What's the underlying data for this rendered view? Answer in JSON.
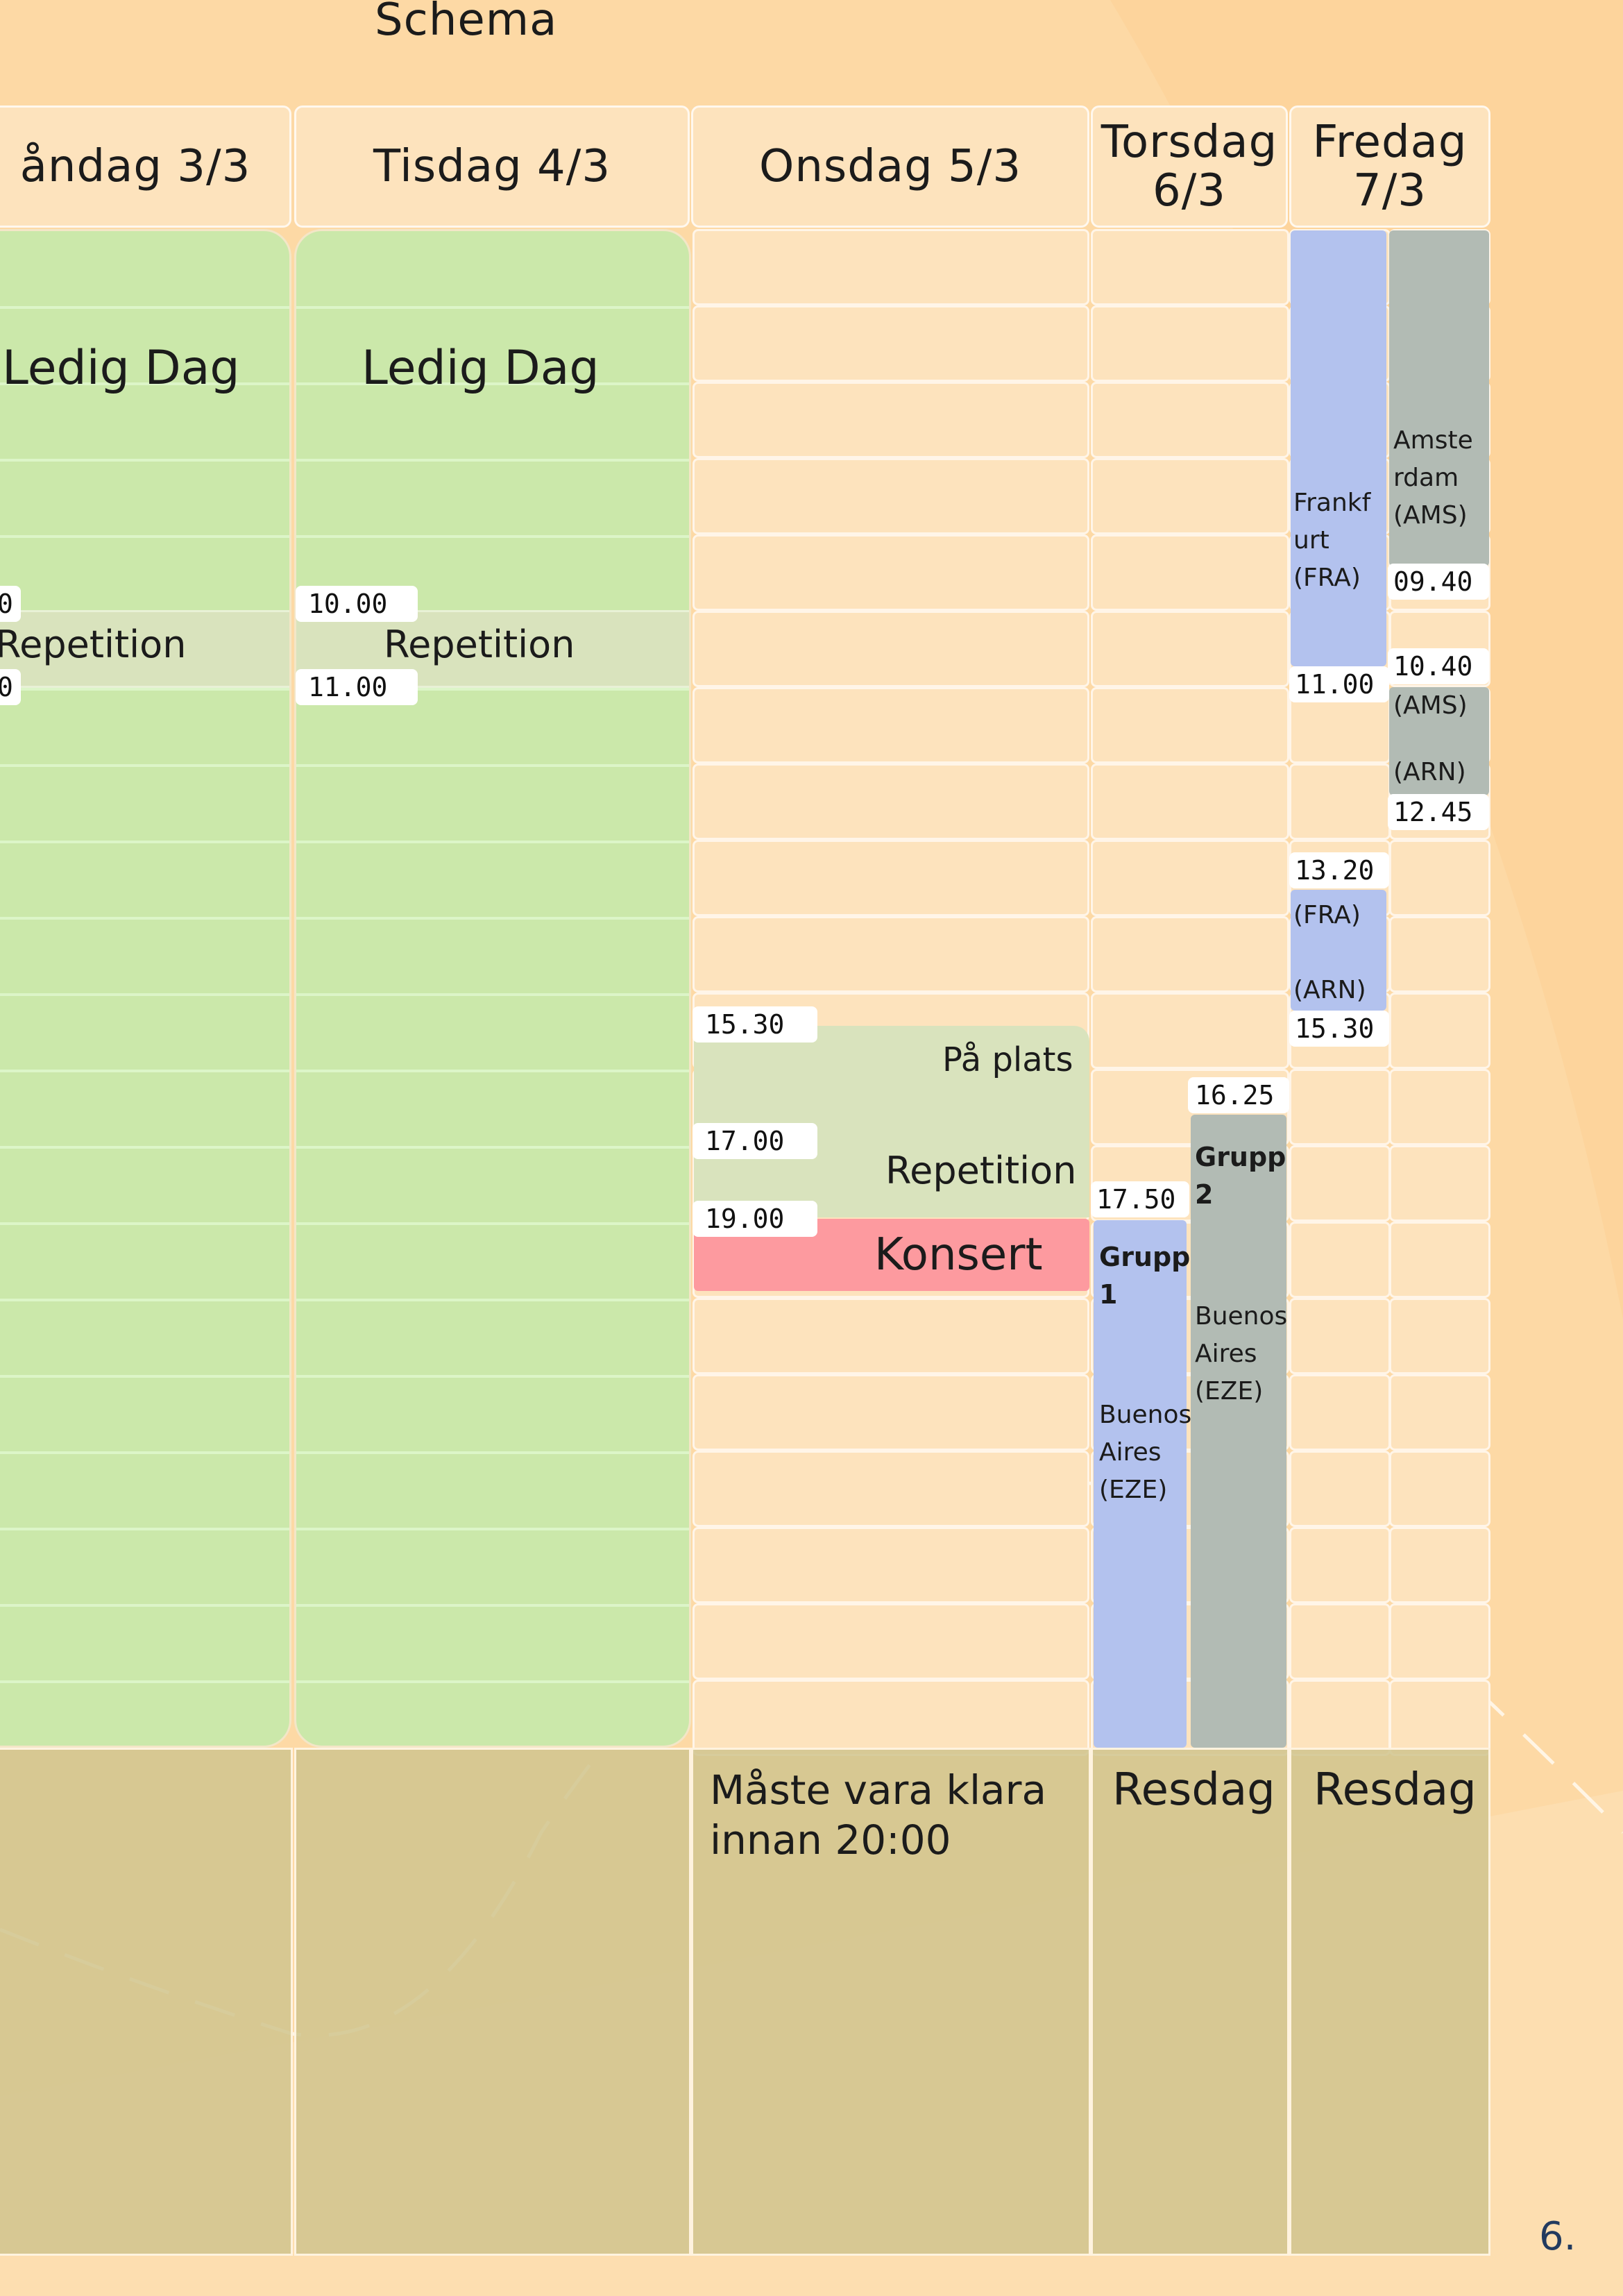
{
  "page": {
    "title": "Schema",
    "page_number": "6."
  },
  "days": [
    {
      "label": "åndag 3/3"
    },
    {
      "label": "Tisdag 4/3"
    },
    {
      "label": "Onsdag 5/3"
    },
    {
      "label": "Torsdag\n6/3"
    },
    {
      "label": "Fredag\n7/3"
    }
  ],
  "monday": {
    "activity": "Ledig Dag",
    "rehearsal": "Repetition",
    "start_fragment": "0",
    "end_fragment": "0"
  },
  "tuesday": {
    "activity": "Ledig Dag",
    "rehearsal": "Repetition",
    "start": "10.00",
    "end": "11.00"
  },
  "wednesday": {
    "on_site_time": "15.30",
    "on_site_label": "På plats",
    "rehearsal_time": "17.00",
    "rehearsal_label": "Repetition",
    "concert_time": "19.00",
    "concert_label": "Konsert",
    "note": "Måste vara klara innan 20:00"
  },
  "thursday": {
    "group1_time": "17.50",
    "group1_label": "Grupp\n1",
    "group1_dest": "Buenos\nAires\n(EZE)",
    "group2_time": "16.25",
    "group2_label": "Grupp\n2",
    "group2_dest": "Buenos\nAires\n(EZE)",
    "footer": "Resdag"
  },
  "friday": {
    "leg1_dest": "Frankf\nurt\n(FRA)",
    "leg1_end": "11.00",
    "leg2_dest": "Amste\nrdam\n(AMS)",
    "leg2_time": "09.40",
    "leg3_start": "10.40",
    "leg3_from": "(AMS)",
    "leg3_to": "(ARN)",
    "leg3_end": "12.45",
    "leg4_start": "13.20",
    "leg4_from": "(FRA)",
    "leg4_to": "(ARN)",
    "leg4_end": "15.30",
    "footer": "Resdag"
  },
  "colors": {
    "background": "#fdd9a5",
    "free_day": "#cbe8aa",
    "rehearsal": "#d9e3bd",
    "concert": "#fd9a9f",
    "flight_blue": "#b3c2ee",
    "flight_grey": "#b2bbb4",
    "bottom": "#d0c48e"
  }
}
